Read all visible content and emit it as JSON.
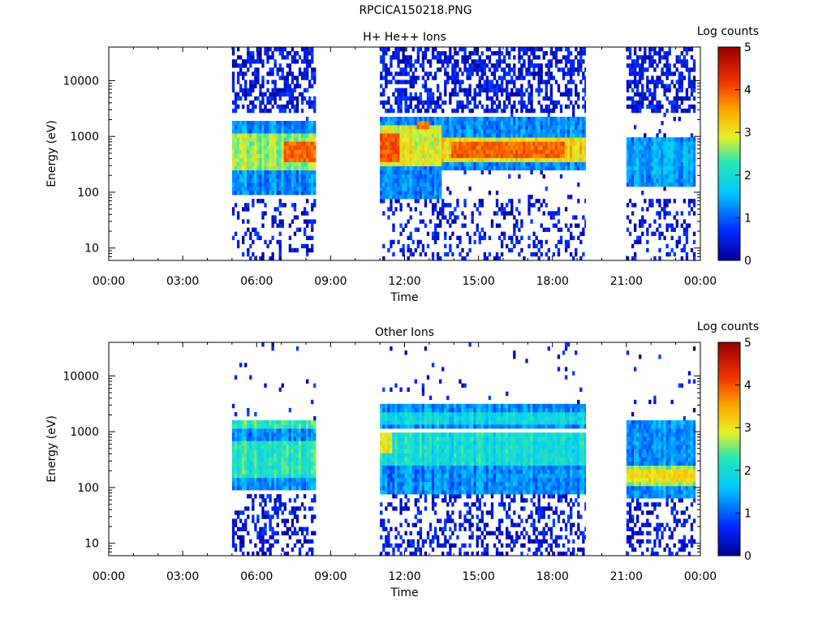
{
  "page_title": "RPCICA150218.PNG",
  "chart_data": [
    {
      "type": "heatmap",
      "title": "H+ He++ Ions",
      "xlabel": "Time",
      "ylabel": "Energy (eV)",
      "x_ticks": [
        "00:00",
        "03:00",
        "06:00",
        "09:00",
        "12:00",
        "15:00",
        "18:00",
        "21:00",
        "00:00"
      ],
      "x_range_hours": [
        0,
        24
      ],
      "y_scale": "log",
      "y_ticks": [
        "10",
        "100",
        "1000",
        "10000"
      ],
      "y_range": [
        6,
        40000
      ],
      "colorbar": {
        "title": "Log counts",
        "ticks": [
          "0",
          "1",
          "2",
          "3",
          "4",
          "5"
        ],
        "range": [
          0,
          5
        ]
      },
      "data_intervals_hours": [
        [
          5.0,
          8.4
        ],
        [
          11.0,
          19.35
        ],
        [
          21.0,
          23.8
        ]
      ],
      "bands": [
        {
          "t": [
            5.0,
            8.4
          ],
          "e_low": 90,
          "e_high": 1900,
          "core_low": 250,
          "core_high": 1200,
          "core_level": 2.7,
          "hot": [
            [
              7.0,
              8.3,
              350,
              800,
              3.9
            ]
          ]
        },
        {
          "t": [
            11.0,
            13.4
          ],
          "e_low": 80,
          "e_high": 2300,
          "core_low": 300,
          "core_high": 1500,
          "core_level": 3.0,
          "hot": [
            [
              11.0,
              11.7,
              350,
              1200,
              4.0
            ],
            [
              12.4,
              12.9,
              1300,
              1800,
              3.8
            ]
          ]
        },
        {
          "t": [
            13.4,
            19.35
          ],
          "e_low": 250,
          "e_high": 2100,
          "core_low": 350,
          "core_high": 1000,
          "core_level": 3.1,
          "hot": [
            [
              13.8,
              18.5,
              450,
              800,
              3.9
            ]
          ]
        },
        {
          "t": [
            21.0,
            23.8
          ],
          "e_low": 120,
          "e_high": 1000,
          "core_low": 200,
          "core_high": 800,
          "core_level": 1.4,
          "hot": []
        }
      ]
    },
    {
      "type": "heatmap",
      "title": "Other Ions",
      "xlabel": "Time",
      "ylabel": "Energy (eV)",
      "x_ticks": [
        "00:00",
        "03:00",
        "06:00",
        "09:00",
        "12:00",
        "15:00",
        "18:00",
        "21:00",
        "00:00"
      ],
      "x_range_hours": [
        0,
        24
      ],
      "y_scale": "log",
      "y_ticks": [
        "10",
        "100",
        "1000",
        "10000"
      ],
      "y_range": [
        6,
        40000
      ],
      "colorbar": {
        "title": "Log counts",
        "ticks": [
          "0",
          "1",
          "2",
          "3",
          "4",
          "5"
        ],
        "range": [
          0,
          5
        ]
      },
      "data_intervals_hours": [
        [
          5.0,
          8.4
        ],
        [
          11.0,
          19.35
        ],
        [
          21.0,
          23.8
        ]
      ],
      "bands": [
        {
          "t": [
            5.0,
            8.4
          ],
          "e_low": 90,
          "e_high": 900,
          "core_low": 150,
          "core_high": 700,
          "core_level": 2.2,
          "hot": []
        },
        {
          "t": [
            5.0,
            8.4
          ],
          "e_low": 1000,
          "e_high": 1700,
          "core_low": 1100,
          "core_high": 1500,
          "core_level": 2.3,
          "hot": []
        },
        {
          "t": [
            11.0,
            19.35
          ],
          "e_low": 80,
          "e_high": 1000,
          "core_low": 250,
          "core_high": 900,
          "core_level": 2.0,
          "hot": [
            [
              11.0,
              11.4,
              400,
              900,
              3.0
            ]
          ]
        },
        {
          "t": [
            11.0,
            19.35
          ],
          "e_low": 1200,
          "e_high": 3000,
          "core_low": 1400,
          "core_high": 2200,
          "core_level": 1.9,
          "hot": []
        },
        {
          "t": [
            21.0,
            23.8
          ],
          "e_low": 60,
          "e_high": 1500,
          "core_low": 110,
          "core_high": 250,
          "core_level": 2.7,
          "hot": [
            [
              21.0,
              23.8,
              130,
              200,
              3.1
            ]
          ]
        }
      ]
    }
  ]
}
